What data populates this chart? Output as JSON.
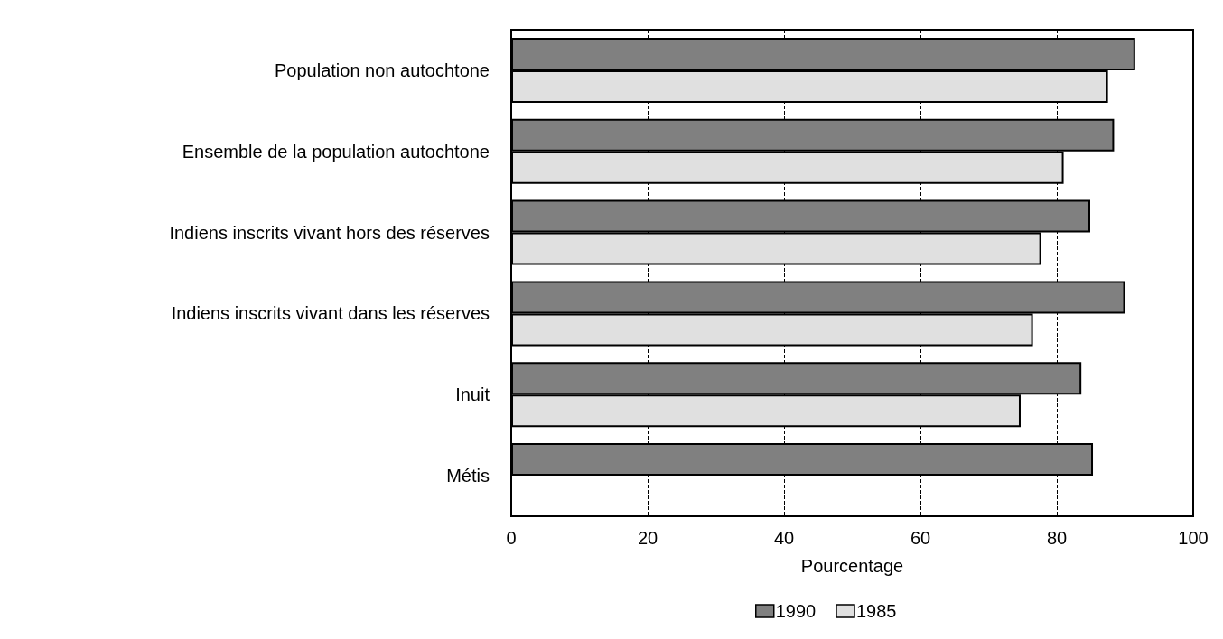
{
  "chart_data": {
    "type": "bar",
    "orientation": "horizontal",
    "xlabel": "Pourcentage",
    "categories": [
      "Population non autochtone",
      "Ensemble de la population autochtone",
      "Indiens inscrits vivant hors des réserves",
      "Indiens inscrits vivant dans les réserves",
      "Inuit",
      "Métis"
    ],
    "series": [
      {
        "name": "1990",
        "color": "#808080",
        "values": [
          91.5,
          88.4,
          84.9,
          90.0,
          83.6,
          85.3
        ]
      },
      {
        "name": "1985",
        "color": "#e0e0e0",
        "values": [
          87.5,
          81.0,
          77.7,
          76.5,
          74.7,
          null
        ]
      }
    ],
    "xlim": [
      0,
      100
    ],
    "xticks": [
      0,
      20,
      40,
      60,
      80,
      100
    ],
    "grid": "x",
    "legend": "bottom"
  }
}
